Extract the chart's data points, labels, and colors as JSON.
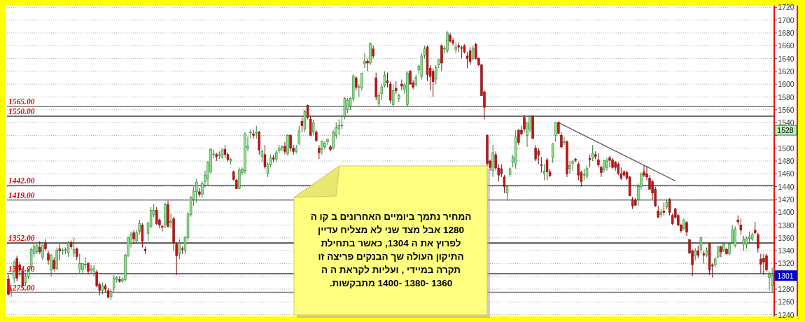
{
  "chart_data": {
    "type": "candlestick",
    "categories": [
      null,
      null,
      null,
      null,
      null,
      null,
      null,
      null,
      null,
      null,
      null,
      null,
      null,
      null,
      null,
      null,
      null,
      null,
      null,
      null,
      null,
      null,
      null,
      null,
      null,
      null,
      null,
      null,
      null,
      null,
      null,
      null,
      null,
      null,
      null,
      null,
      null,
      null,
      null,
      null,
      null,
      null,
      null,
      null,
      null,
      null,
      null,
      null,
      null,
      null,
      null,
      null,
      null,
      null,
      null,
      null,
      null,
      null,
      null,
      null,
      null,
      null,
      null,
      null,
      null,
      null,
      null,
      null,
      null,
      null,
      null,
      null,
      null,
      null,
      null,
      null,
      null,
      null,
      null,
      null,
      null,
      null,
      null,
      null,
      null,
      null,
      null,
      null,
      null,
      null,
      null,
      null,
      null,
      null,
      null,
      null,
      null,
      null,
      null,
      null,
      null,
      null,
      null,
      null,
      null,
      null,
      null,
      null,
      null,
      null,
      null,
      null,
      null,
      null,
      null,
      null,
      null,
      null,
      null,
      null,
      null,
      null,
      null,
      null,
      null,
      null,
      null,
      null,
      null,
      null,
      null,
      null,
      null,
      null,
      null,
      null,
      null,
      null,
      null,
      null,
      null,
      null,
      null,
      null,
      null,
      null,
      null,
      null,
      null,
      null,
      null,
      null,
      null,
      null,
      null,
      null,
      null,
      null,
      null,
      null,
      null,
      null,
      null,
      null,
      null,
      null,
      null,
      null,
      null,
      null,
      null,
      null,
      null,
      null,
      null,
      null,
      null,
      null,
      null,
      null,
      null,
      null,
      null,
      null,
      null,
      null,
      null,
      null,
      null,
      null,
      null,
      null,
      null,
      null,
      null,
      null,
      null,
      null,
      null,
      null,
      null,
      null,
      null,
      null,
      null,
      null,
      null,
      null,
      null,
      null,
      null,
      null,
      null,
      null,
      null,
      null,
      null,
      null,
      null,
      null,
      null,
      null,
      null,
      null,
      null,
      null,
      null,
      null,
      null,
      null,
      null,
      null,
      null,
      null,
      null,
      null,
      null,
      null,
      null,
      null,
      null,
      null,
      null,
      null,
      null,
      null,
      null,
      null,
      null,
      null,
      null,
      null,
      null,
      null,
      null,
      null,
      null,
      null,
      null,
      null,
      null,
      null,
      null,
      null,
      null,
      null,
      null,
      null,
      null
    ],
    "ohlc": [
      [
        1296,
        1302,
        1270,
        1272
      ],
      [
        1275,
        1282,
        1268,
        1277
      ],
      [
        1296,
        1325,
        1290,
        1322
      ],
      [
        1328,
        1332,
        1292,
        1297
      ],
      [
        1318,
        1322,
        1300,
        1310
      ],
      [
        1308,
        1312,
        1283,
        1285
      ],
      [
        1290,
        1305,
        1285,
        1300
      ],
      [
        1300,
        1312,
        1296,
        1308
      ],
      [
        1315,
        1345,
        1312,
        1342
      ],
      [
        1335,
        1350,
        1330,
        1347
      ],
      [
        1338,
        1350,
        1335,
        1348
      ],
      [
        1345,
        1355,
        1335,
        1338
      ],
      [
        1330,
        1350,
        1325,
        1348
      ],
      [
        1352,
        1358,
        1340,
        1343
      ],
      [
        1335,
        1340,
        1318,
        1325
      ],
      [
        1310,
        1335,
        1300,
        1333
      ],
      [
        1325,
        1330,
        1308,
        1312
      ],
      [
        1312,
        1345,
        1310,
        1341
      ],
      [
        1343,
        1350,
        1325,
        1340
      ],
      [
        1340,
        1344,
        1334,
        1341
      ],
      [
        1341,
        1345,
        1335,
        1342
      ],
      [
        1337,
        1355,
        1330,
        1352
      ],
      [
        1353,
        1356,
        1342,
        1346
      ],
      [
        1336,
        1360,
        1330,
        1342
      ],
      [
        1343,
        1345,
        1325,
        1331
      ],
      [
        1311,
        1335,
        1305,
        1320
      ],
      [
        1310,
        1320,
        1304,
        1320
      ],
      [
        1318,
        1330,
        1312,
        1319
      ],
      [
        1320,
        1322,
        1303,
        1308
      ],
      [
        1310,
        1318,
        1305,
        1311
      ],
      [
        1308,
        1318,
        1300,
        1312
      ],
      [
        1307,
        1310,
        1283,
        1285
      ],
      [
        1287,
        1290,
        1270,
        1278
      ],
      [
        1278,
        1290,
        1272,
        1285
      ],
      [
        1285,
        1288,
        1275,
        1280
      ],
      [
        1278,
        1282,
        1266,
        1267
      ],
      [
        1268,
        1280,
        1263,
        1276
      ],
      [
        1282,
        1302,
        1276,
        1297
      ],
      [
        1295,
        1300,
        1290,
        1298
      ],
      [
        1295,
        1300,
        1290,
        1292
      ],
      [
        1293,
        1298,
        1290,
        1296
      ],
      [
        1295,
        1335,
        1292,
        1333
      ],
      [
        1333,
        1362,
        1330,
        1360
      ],
      [
        1352,
        1370,
        1345,
        1365
      ],
      [
        1368,
        1372,
        1350,
        1358
      ],
      [
        1355,
        1372,
        1352,
        1368
      ],
      [
        1370,
        1388,
        1365,
        1382
      ],
      [
        1380,
        1383,
        1345,
        1355
      ],
      [
        1342,
        1346,
        1335,
        1340
      ],
      [
        1367,
        1385,
        1355,
        1383
      ],
      [
        1378,
        1408,
        1375,
        1403
      ],
      [
        1396,
        1413,
        1392,
        1403
      ],
      [
        1403,
        1408,
        1380,
        1382
      ],
      [
        1388,
        1390,
        1375,
        1380
      ],
      [
        1378,
        1380,
        1370,
        1377
      ],
      [
        1380,
        1415,
        1375,
        1412
      ],
      [
        1412,
        1418,
        1376,
        1378
      ],
      [
        1384,
        1398,
        1375,
        1386
      ],
      [
        1390,
        1393,
        1340,
        1352
      ],
      [
        1350,
        1353,
        1302,
        1332
      ],
      [
        1335,
        1358,
        1327,
        1352
      ],
      [
        1343,
        1347,
        1335,
        1342
      ],
      [
        1340,
        1363,
        1335,
        1361
      ],
      [
        1360,
        1400,
        1355,
        1398
      ],
      [
        1396,
        1425,
        1393,
        1423
      ],
      [
        1420,
        1440,
        1410,
        1433
      ],
      [
        1432,
        1452,
        1415,
        1447
      ],
      [
        1432,
        1438,
        1424,
        1428
      ],
      [
        1428,
        1448,
        1423,
        1445
      ],
      [
        1448,
        1465,
        1438,
        1458
      ],
      [
        1453,
        1480,
        1442,
        1477
      ],
      [
        1463,
        1500,
        1460,
        1498
      ],
      [
        1490,
        1498,
        1485,
        1491
      ],
      [
        1490,
        1493,
        1480,
        1487
      ],
      [
        1488,
        1495,
        1483,
        1491
      ],
      [
        1486,
        1500,
        1484,
        1497
      ],
      [
        1498,
        1505,
        1485,
        1490
      ],
      [
        1490,
        1493,
        1478,
        1482
      ],
      [
        1480,
        1485,
        1475,
        1483
      ],
      [
        1463,
        1465,
        1450,
        1451
      ],
      [
        1450,
        1452,
        1436,
        1437
      ],
      [
        1437,
        1470,
        1436,
        1466
      ],
      [
        1462,
        1470,
        1458,
        1467
      ],
      [
        1465,
        1525,
        1460,
        1522
      ],
      [
        1500,
        1518,
        1495,
        1503
      ],
      [
        1524,
        1530,
        1515,
        1525
      ],
      [
        1522,
        1528,
        1515,
        1520
      ],
      [
        1523,
        1535,
        1515,
        1525
      ],
      [
        1525,
        1527,
        1490,
        1497
      ],
      [
        1487,
        1498,
        1478,
        1495
      ],
      [
        1490,
        1505,
        1468,
        1471
      ],
      [
        1460,
        1478,
        1455,
        1474
      ],
      [
        1474,
        1490,
        1470,
        1485
      ],
      [
        1485,
        1490,
        1478,
        1483
      ],
      [
        1483,
        1497,
        1478,
        1493
      ],
      [
        1496,
        1505,
        1492,
        1499
      ],
      [
        1500,
        1505,
        1495,
        1502
      ],
      [
        1503,
        1510,
        1490,
        1495
      ],
      [
        1492,
        1522,
        1488,
        1520
      ],
      [
        1520,
        1522,
        1495,
        1500
      ],
      [
        1500,
        1505,
        1490,
        1495
      ],
      [
        1495,
        1505,
        1492,
        1500
      ],
      [
        1508,
        1535,
        1505,
        1527
      ],
      [
        1542,
        1548,
        1525,
        1535
      ],
      [
        1530,
        1560,
        1525,
        1557
      ],
      [
        1567,
        1568,
        1545,
        1548
      ],
      [
        1545,
        1550,
        1520,
        1520
      ],
      [
        1525,
        1545,
        1520,
        1540
      ],
      [
        1525,
        1528,
        1510,
        1512
      ],
      [
        1500,
        1505,
        1483,
        1493
      ],
      [
        1498,
        1512,
        1490,
        1510
      ],
      [
        1502,
        1510,
        1498,
        1508
      ],
      [
        1510,
        1515,
        1505,
        1514
      ],
      [
        1502,
        1505,
        1495,
        1498
      ],
      [
        1500,
        1528,
        1498,
        1525
      ],
      [
        1520,
        1540,
        1515,
        1532
      ],
      [
        1530,
        1545,
        1520,
        1535
      ],
      [
        1535,
        1552,
        1530,
        1536
      ],
      [
        1550,
        1580,
        1545,
        1578
      ],
      [
        1560,
        1578,
        1555,
        1575
      ],
      [
        1565,
        1580,
        1560,
        1578
      ],
      [
        1577,
        1615,
        1573,
        1613
      ],
      [
        1610,
        1612,
        1590,
        1595
      ],
      [
        1595,
        1600,
        1580,
        1596
      ],
      [
        1595,
        1618,
        1590,
        1617
      ],
      [
        1632,
        1648,
        1625,
        1636
      ],
      [
        1636,
        1640,
        1620,
        1633
      ],
      [
        1633,
        1665,
        1630,
        1663
      ],
      [
        1655,
        1660,
        1640,
        1644
      ],
      [
        1610,
        1618,
        1575,
        1580
      ],
      [
        1570,
        1588,
        1565,
        1582
      ],
      [
        1585,
        1600,
        1575,
        1596
      ],
      [
        1598,
        1620,
        1595,
        1614
      ],
      [
        1605,
        1618,
        1595,
        1602
      ],
      [
        1600,
        1604,
        1570,
        1575
      ],
      [
        1568,
        1600,
        1565,
        1590
      ],
      [
        1593,
        1605,
        1585,
        1590
      ],
      [
        1578,
        1585,
        1572,
        1582
      ],
      [
        1600,
        1607,
        1590,
        1597
      ],
      [
        1592,
        1602,
        1585,
        1599
      ],
      [
        1568,
        1620,
        1565,
        1617
      ],
      [
        1620,
        1622,
        1600,
        1600
      ],
      [
        1602,
        1606,
        1592,
        1595
      ],
      [
        1600,
        1615,
        1596,
        1611
      ],
      [
        1622,
        1630,
        1615,
        1628
      ],
      [
        1612,
        1648,
        1607,
        1644
      ],
      [
        1645,
        1660,
        1640,
        1655
      ],
      [
        1658,
        1660,
        1605,
        1615
      ],
      [
        1625,
        1630,
        1590,
        1612
      ],
      [
        1620,
        1625,
        1580,
        1604
      ],
      [
        1608,
        1630,
        1600,
        1626
      ],
      [
        1630,
        1640,
        1625,
        1638
      ],
      [
        1660,
        1662,
        1620,
        1633
      ],
      [
        1655,
        1660,
        1648,
        1656
      ],
      [
        1652,
        1683,
        1648,
        1680
      ],
      [
        1676,
        1680,
        1665,
        1667
      ],
      [
        1668,
        1672,
        1660,
        1664
      ],
      [
        1654,
        1665,
        1648,
        1658
      ],
      [
        1660,
        1665,
        1650,
        1658
      ],
      [
        1657,
        1660,
        1640,
        1656
      ],
      [
        1660,
        1662,
        1648,
        1650
      ],
      [
        1644,
        1650,
        1625,
        1640
      ],
      [
        1652,
        1658,
        1630,
        1635
      ],
      [
        1640,
        1660,
        1637,
        1656
      ],
      [
        1662,
        1665,
        1638,
        1640
      ],
      [
        1640,
        1642,
        1628,
        1630
      ],
      [
        1630,
        1632,
        1582,
        1582
      ],
      [
        1588,
        1590,
        1545,
        1564
      ],
      [
        1520,
        1522,
        1472,
        1476
      ],
      [
        1480,
        1482,
        1465,
        1470
      ],
      [
        1465,
        1505,
        1455,
        1493
      ],
      [
        1490,
        1495,
        1465,
        1469
      ],
      [
        1469,
        1475,
        1448,
        1458
      ],
      [
        1468,
        1475,
        1455,
        1460
      ],
      [
        1455,
        1458,
        1430,
        1440
      ],
      [
        1430,
        1442,
        1418,
        1440
      ],
      [
        1459,
        1470,
        1455,
        1468
      ],
      [
        1478,
        1490,
        1470,
        1486
      ],
      [
        1475,
        1528,
        1468,
        1518
      ],
      [
        1528,
        1530,
        1505,
        1509
      ],
      [
        1528,
        1535,
        1520,
        1522
      ],
      [
        1548,
        1552,
        1525,
        1530
      ],
      [
        1520,
        1540,
        1502,
        1540
      ],
      [
        1530,
        1552,
        1525,
        1549
      ],
      [
        1550,
        1552,
        1515,
        1515
      ],
      [
        1500,
        1505,
        1480,
        1483
      ],
      [
        1496,
        1500,
        1475,
        1489
      ],
      [
        1474,
        1486,
        1462,
        1473
      ],
      [
        1460,
        1475,
        1450,
        1464
      ],
      [
        1482,
        1485,
        1450,
        1463
      ],
      [
        1463,
        1468,
        1455,
        1457
      ],
      [
        1485,
        1508,
        1477,
        1507
      ],
      [
        1520,
        1541,
        1510,
        1540
      ],
      [
        1540,
        1542,
        1522,
        1523
      ],
      [
        1520,
        1525,
        1500,
        1502
      ],
      [
        1509,
        1518,
        1505,
        1510
      ],
      [
        1510,
        1512,
        1455,
        1460
      ],
      [
        1468,
        1480,
        1460,
        1473
      ],
      [
        1476,
        1482,
        1465,
        1479
      ],
      [
        1483,
        1485,
        1478,
        1481
      ],
      [
        1475,
        1478,
        1450,
        1458
      ],
      [
        1462,
        1465,
        1440,
        1448
      ],
      [
        1458,
        1468,
        1450,
        1459
      ],
      [
        1456,
        1473,
        1452,
        1469
      ],
      [
        1484,
        1490,
        1470,
        1482
      ],
      [
        1485,
        1505,
        1480,
        1492
      ],
      [
        1490,
        1495,
        1483,
        1487
      ],
      [
        1482,
        1492,
        1470,
        1474
      ],
      [
        1470,
        1473,
        1455,
        1462
      ],
      [
        1467,
        1482,
        1462,
        1481
      ],
      [
        1470,
        1485,
        1465,
        1480
      ],
      [
        1485,
        1488,
        1470,
        1481
      ],
      [
        1482,
        1485,
        1468,
        1470
      ],
      [
        1478,
        1480,
        1465,
        1470
      ],
      [
        1475,
        1478,
        1458,
        1461
      ],
      [
        1460,
        1470,
        1450,
        1453
      ],
      [
        1463,
        1466,
        1455,
        1458
      ],
      [
        1462,
        1465,
        1450,
        1453
      ],
      [
        1455,
        1457,
        1425,
        1426
      ],
      [
        1420,
        1424,
        1405,
        1410
      ],
      [
        1419,
        1422,
        1410,
        1411
      ],
      [
        1420,
        1445,
        1410,
        1440
      ],
      [
        1440,
        1462,
        1435,
        1460
      ],
      [
        1463,
        1473,
        1455,
        1458
      ],
      [
        1460,
        1472,
        1450,
        1455
      ],
      [
        1453,
        1458,
        1435,
        1436
      ],
      [
        1448,
        1450,
        1420,
        1430
      ],
      [
        1436,
        1440,
        1408,
        1410
      ],
      [
        1402,
        1410,
        1392,
        1392
      ],
      [
        1396,
        1405,
        1392,
        1400
      ],
      [
        1402,
        1415,
        1395,
        1400
      ],
      [
        1408,
        1420,
        1405,
        1415
      ],
      [
        1420,
        1422,
        1395,
        1400
      ],
      [
        1395,
        1398,
        1380,
        1382
      ],
      [
        1405,
        1407,
        1390,
        1392
      ],
      [
        1395,
        1398,
        1378,
        1380
      ],
      [
        1380,
        1382,
        1368,
        1371
      ],
      [
        1375,
        1390,
        1372,
        1388
      ],
      [
        1384,
        1386,
        1363,
        1369
      ],
      [
        1357,
        1358,
        1336,
        1336
      ],
      [
        1340,
        1342,
        1300,
        1318
      ],
      [
        1332,
        1344,
        1325,
        1340
      ],
      [
        1340,
        1348,
        1328,
        1333
      ],
      [
        1342,
        1362,
        1336,
        1360
      ],
      [
        1335,
        1340,
        1320,
        1333
      ],
      [
        1333,
        1345,
        1330,
        1340
      ],
      [
        1351,
        1352,
        1302,
        1310
      ],
      [
        1318,
        1320,
        1298,
        1316
      ],
      [
        1318,
        1330,
        1314,
        1327
      ],
      [
        1330,
        1346,
        1328,
        1346
      ],
      [
        1346,
        1348,
        1330,
        1338
      ],
      [
        1340,
        1352,
        1338,
        1350
      ],
      [
        1342,
        1345,
        1334,
        1335
      ],
      [
        1335,
        1352,
        1333,
        1350
      ],
      [
        1353,
        1380,
        1350,
        1372
      ],
      [
        1348,
        1378,
        1345,
        1374
      ],
      [
        1388,
        1395,
        1380,
        1385
      ],
      [
        1380,
        1390,
        1365,
        1372
      ],
      [
        1350,
        1363,
        1340,
        1358
      ],
      [
        1350,
        1362,
        1343,
        1360
      ],
      [
        1359,
        1370,
        1350,
        1362
      ],
      [
        1358,
        1368,
        1355,
        1365
      ],
      [
        1372,
        1385,
        1365,
        1368
      ],
      [
        1365,
        1368,
        1337,
        1344
      ],
      [
        1327,
        1335,
        1305,
        1319
      ],
      [
        1328,
        1335,
        1302,
        1322
      ],
      [
        1332,
        1335,
        1308,
        1310
      ],
      [
        1298,
        1308,
        1278,
        1303
      ],
      [
        1286,
        1313,
        1275,
        1301
      ]
    ],
    "series": [
      {
        "type": "line",
        "color": "#555555",
        "values": [
          null,
          null,
          null,
          null,
          null,
          null,
          null,
          null,
          null,
          null,
          null,
          null,
          null,
          null,
          null,
          null,
          null,
          null,
          null,
          null,
          null,
          null,
          null,
          null,
          null,
          null,
          null,
          null,
          null,
          null,
          null,
          null,
          null,
          null,
          null,
          null,
          null,
          null,
          null,
          null,
          null,
          null,
          null,
          null,
          null,
          null,
          null,
          null,
          null,
          null,
          null,
          null,
          null,
          null,
          null,
          null,
          null,
          null,
          null,
          null,
          null,
          null,
          null,
          null,
          null,
          null,
          null,
          null,
          null,
          null,
          null,
          null,
          null,
          null,
          null,
          null,
          null,
          null,
          null,
          null,
          null,
          null,
          null,
          null,
          null,
          null,
          null,
          null,
          null,
          null,
          null,
          null,
          null,
          null,
          null,
          null,
          null,
          null,
          null,
          null,
          null,
          null,
          null,
          null,
          null,
          null,
          null,
          null,
          null,
          null,
          null,
          null,
          null,
          null,
          null,
          null,
          null,
          null,
          null,
          null,
          null,
          null,
          null,
          null,
          null,
          null,
          null,
          null,
          null,
          null,
          null,
          null,
          null,
          null,
          null,
          null,
          null,
          null,
          null,
          null,
          null,
          null,
          null,
          null,
          null,
          null,
          null,
          null,
          null,
          null,
          null,
          null,
          null,
          null,
          null,
          null,
          null,
          null,
          null,
          null,
          null,
          null,
          null,
          null,
          null,
          null,
          null,
          null,
          null,
          null,
          null,
          null,
          null,
          null,
          null,
          null,
          null,
          null,
          null,
          null,
          null,
          null,
          null,
          null,
          null,
          null,
          null,
          null,
          null,
          null,
          null,
          null,
          null,
          1540,
          null,
          null,
          null,
          null,
          null,
          null,
          null,
          null,
          null,
          null,
          null,
          null,
          null,
          null,
          null,
          null,
          null,
          null,
          null,
          null,
          null,
          null,
          null,
          null,
          null,
          null,
          null,
          null,
          null,
          null,
          null,
          null,
          null,
          null,
          null,
          null,
          null,
          null,
          null,
          null,
          1449,
          null,
          null,
          null,
          null,
          null,
          null,
          null,
          null,
          null,
          null,
          null,
          null,
          null,
          null,
          null,
          null,
          null,
          null,
          null,
          null,
          null,
          null,
          null,
          null,
          null,
          null,
          null,
          null,
          null,
          null,
          null,
          null,
          null,
          null
        ]
      }
    ],
    "ylim": [
      1240,
      1720
    ],
    "yticks": [
      1240,
      1260,
      1280,
      {
        "value": 1300,
        "label": null
      },
      1320,
      1340,
      1360,
      1380,
      1400,
      1420,
      1440,
      1460,
      1480,
      1500,
      {
        "value": 1520,
        "label": null
      },
      1540,
      1560,
      1580,
      1600,
      1620,
      1640,
      1660,
      1680,
      1700,
      1720
    ],
    "grid": "y",
    "tick_labels": "y",
    "ref_lines": [
      {
        "axis": "y",
        "value": 1565,
        "label": "1565.00",
        "color": "#808080"
      },
      {
        "axis": "y",
        "value": 1550,
        "label": "1550.00",
        "color": "#404040"
      },
      {
        "axis": "y",
        "value": 1442,
        "label": "1442.00",
        "color": "#555555"
      },
      {
        "axis": "y",
        "value": 1419,
        "label": "1419.00",
        "color": "#808080"
      },
      {
        "axis": "y",
        "value": 1352,
        "label": "1352.00",
        "color": "#404040"
      },
      {
        "axis": "y",
        "value": 1304,
        "label": "1304.00",
        "color": "#404040"
      },
      {
        "axis": "y",
        "value": 1275,
        "label": "1275.00",
        "color": "#808080"
      }
    ],
    "annotations": [
      "המחיר נתמך ביומיים האחרונים  ב קו ה\n1280 אבל מצד שני לא מצליח עדיין\nלפרוץ את ה 1304, כאשר  בתחילת\nהתיקון העולה שך הבנקים  פריצה זו\nתקרה  במיידי , ועליות לקראת  ה ה\n1360 -1380 -1400  מתבקשות.",
      {
        "text": "1528",
        "y": 1528
      },
      {
        "text": "1301",
        "y": 1301
      }
    ]
  }
}
